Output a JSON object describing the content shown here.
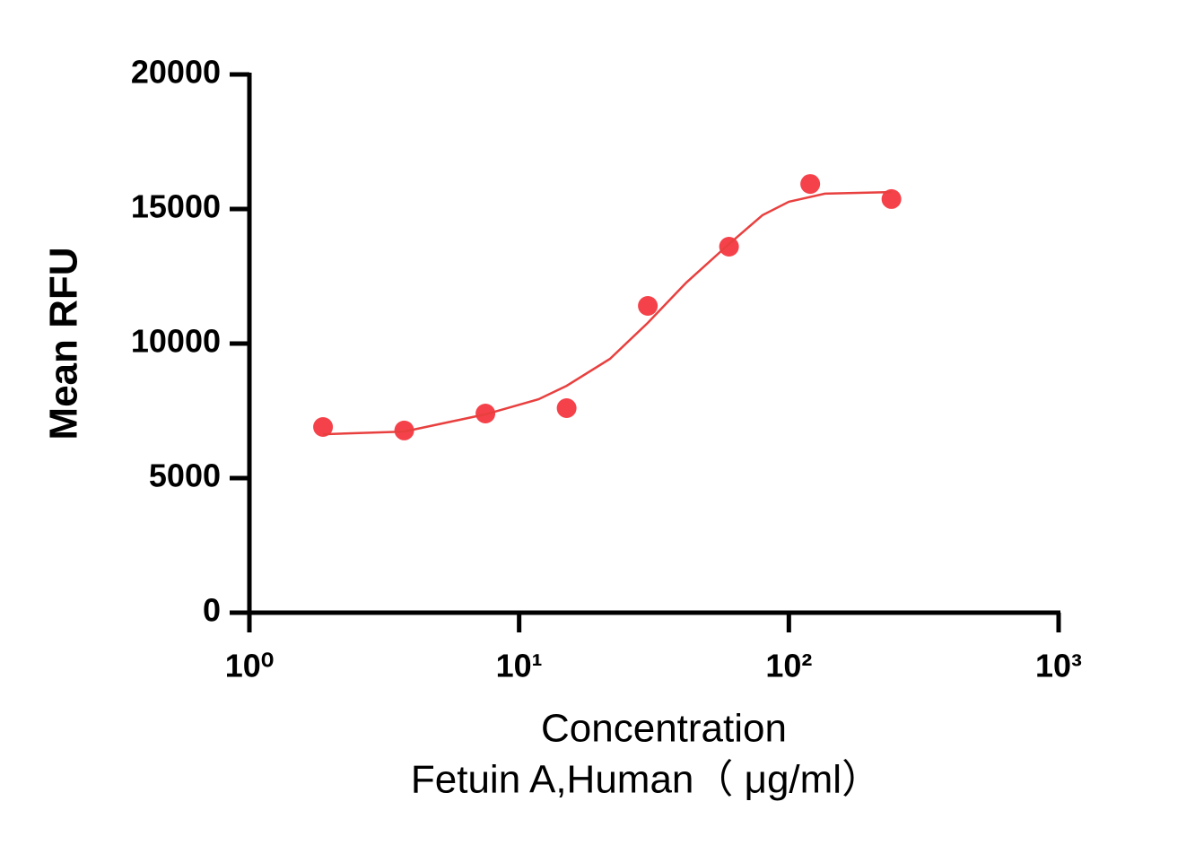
{
  "chart_data": {
    "type": "scatter",
    "x_label": "Concentration",
    "x_label_2": "Fetuin A,Human（ μg/ml）",
    "y_label": "Mean RFU",
    "x_scale": "log",
    "xlim": [
      1,
      1000
    ],
    "xticks": [
      {
        "value": 1,
        "label": "10⁰"
      },
      {
        "value": 10,
        "label": "10¹"
      },
      {
        "value": 100,
        "label": "10²"
      },
      {
        "value": 1000,
        "label": "10³"
      }
    ],
    "ylim": [
      0,
      20000
    ],
    "yticks": [
      0,
      5000,
      10000,
      15000,
      20000
    ],
    "series": [
      {
        "kind": "points",
        "color": "#f5424a",
        "x": [
          1.875,
          3.75,
          7.5,
          15,
          30,
          60,
          120,
          240
        ],
        "values": [
          6900,
          6770,
          7400,
          7600,
          11400,
          13600,
          15930,
          15370
        ]
      },
      {
        "kind": "fit",
        "color": "#e8403f",
        "x": [
          1.875,
          3.75,
          7.5,
          11.8,
          15,
          21.7,
          30,
          41.7,
          60,
          79.8,
          100,
          136,
          240
        ],
        "values": [
          6630,
          6730,
          7370,
          7930,
          8430,
          9430,
          10770,
          12270,
          13700,
          14770,
          15270,
          15570,
          15630
        ]
      }
    ]
  }
}
